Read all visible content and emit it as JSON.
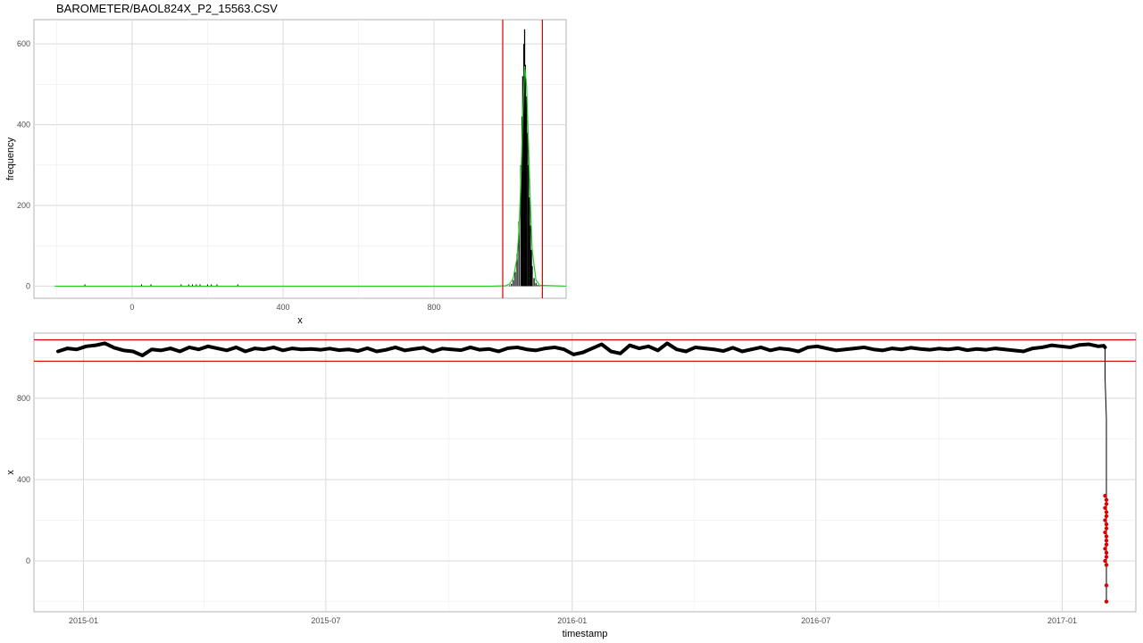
{
  "title": "BAROMETER/BAOL824X_P2_15563.CSV",
  "colors": {
    "grid": "#d9d9d9",
    "threshold": "#d40000",
    "density": "#22cc22",
    "bars": "#000000",
    "outlier": "#e00000",
    "panel_border": "#b3b3b3"
  },
  "chart_data": [
    {
      "type": "histogram",
      "xlabel": "x",
      "ylabel": "frequency",
      "xlim": [
        -260,
        1150
      ],
      "ylim": [
        -30,
        660
      ],
      "xticks": [
        0,
        400,
        800
      ],
      "yticks": [
        0,
        200,
        400,
        600
      ],
      "grid": true,
      "vlines": [
        982,
        1087
      ],
      "density_curve": {
        "x": [
          -205,
          -150,
          -100,
          0,
          200,
          400,
          600,
          800,
          950,
          990,
          1000,
          1010,
          1020,
          1025,
          1030,
          1035,
          1040,
          1045,
          1050,
          1055,
          1060,
          1070,
          1080,
          1150
        ],
        "y": [
          0,
          0,
          0,
          0,
          0,
          0,
          0,
          0,
          0,
          1,
          5,
          20,
          70,
          140,
          260,
          420,
          545,
          500,
          360,
          210,
          90,
          15,
          2,
          0
        ]
      },
      "bars": {
        "x": [
          1000,
          1005,
          1010,
          1015,
          1020,
          1025,
          1030,
          1033,
          1035,
          1038,
          1040,
          1042,
          1045,
          1048,
          1050,
          1053,
          1055,
          1058,
          1060,
          1065,
          1070,
          1075,
          1080
        ],
        "y": [
          2,
          6,
          15,
          35,
          80,
          160,
          300,
          420,
          520,
          600,
          636,
          548,
          470,
          380,
          300,
          220,
          150,
          90,
          50,
          20,
          8,
          3,
          1
        ]
      },
      "rug_x": [
        -125,
        25,
        50,
        130,
        150,
        160,
        170,
        180,
        200,
        210,
        225,
        280
      ]
    },
    {
      "type": "line",
      "xlabel": "timestamp",
      "ylabel": "x",
      "xlim": [
        "2014-11-25",
        "2017-02-25"
      ],
      "ylim": [
        -250,
        1120
      ],
      "xticks": [
        "2015-01",
        "2015-07",
        "2016-01",
        "2016-07",
        "2017-01"
      ],
      "yticks": [
        0,
        400,
        800
      ],
      "grid": true,
      "hlines": [
        982,
        1087
      ],
      "series": [
        {
          "color": "#000000",
          "x": [
            "2014-12-13",
            "2014-12-20",
            "2014-12-27",
            "2015-01-03",
            "2015-01-10",
            "2015-01-17",
            "2015-01-24",
            "2015-01-31",
            "2015-02-07",
            "2015-02-14",
            "2015-02-21",
            "2015-02-28",
            "2015-03-07",
            "2015-03-14",
            "2015-03-21",
            "2015-03-28",
            "2015-04-04",
            "2015-04-11",
            "2015-04-18",
            "2015-04-25",
            "2015-05-02",
            "2015-05-09",
            "2015-05-16",
            "2015-05-23",
            "2015-05-30",
            "2015-06-06",
            "2015-06-13",
            "2015-06-20",
            "2015-06-27",
            "2015-07-04",
            "2015-07-11",
            "2015-07-18",
            "2015-07-25",
            "2015-08-01",
            "2015-08-08",
            "2015-08-15",
            "2015-08-22",
            "2015-08-29",
            "2015-09-05",
            "2015-09-12",
            "2015-09-19",
            "2015-09-26",
            "2015-10-03",
            "2015-10-10",
            "2015-10-17",
            "2015-10-24",
            "2015-10-31",
            "2015-11-07",
            "2015-11-14",
            "2015-11-21",
            "2015-11-28",
            "2015-12-05",
            "2015-12-12",
            "2015-12-19",
            "2015-12-26",
            "2016-01-02",
            "2016-01-09",
            "2016-01-16",
            "2016-01-23",
            "2016-01-30",
            "2016-02-06",
            "2016-02-13",
            "2016-02-20",
            "2016-02-27",
            "2016-03-05",
            "2016-03-12",
            "2016-03-19",
            "2016-03-26",
            "2016-04-02",
            "2016-04-09",
            "2016-04-16",
            "2016-04-23",
            "2016-04-30",
            "2016-05-07",
            "2016-05-14",
            "2016-05-21",
            "2016-05-28",
            "2016-06-04",
            "2016-06-11",
            "2016-06-18",
            "2016-06-25",
            "2016-07-02",
            "2016-07-09",
            "2016-07-16",
            "2016-07-23",
            "2016-07-30",
            "2016-08-06",
            "2016-08-13",
            "2016-08-20",
            "2016-08-27",
            "2016-09-03",
            "2016-09-10",
            "2016-09-17",
            "2016-09-24",
            "2016-10-01",
            "2016-10-08",
            "2016-10-15",
            "2016-10-22",
            "2016-10-29",
            "2016-11-05",
            "2016-11-12",
            "2016-11-19",
            "2016-11-26",
            "2016-12-03",
            "2016-12-10",
            "2016-12-17",
            "2016-12-24",
            "2016-12-31",
            "2017-01-07",
            "2017-01-14",
            "2017-01-21",
            "2017-01-28",
            "2017-02-01",
            "2017-02-02"
          ],
          "y": [
            1030,
            1045,
            1040,
            1055,
            1060,
            1070,
            1048,
            1035,
            1030,
            1010,
            1040,
            1035,
            1045,
            1030,
            1050,
            1040,
            1055,
            1045,
            1035,
            1050,
            1030,
            1045,
            1040,
            1050,
            1035,
            1045,
            1040,
            1042,
            1038,
            1044,
            1036,
            1040,
            1032,
            1046,
            1030,
            1038,
            1050,
            1035,
            1042,
            1048,
            1030,
            1044,
            1040,
            1036,
            1050,
            1038,
            1042,
            1030,
            1046,
            1050,
            1040,
            1035,
            1045,
            1050,
            1040,
            1015,
            1025,
            1045,
            1065,
            1030,
            1020,
            1060,
            1045,
            1055,
            1035,
            1070,
            1040,
            1030,
            1050,
            1045,
            1040,
            1032,
            1048,
            1030,
            1040,
            1050,
            1035,
            1045,
            1040,
            1030,
            1050,
            1055,
            1045,
            1035,
            1040,
            1045,
            1050,
            1040,
            1035,
            1045,
            1040,
            1048,
            1042,
            1038,
            1044,
            1040,
            1046,
            1036,
            1042,
            1038,
            1045,
            1040,
            1035,
            1030,
            1045,
            1050,
            1060,
            1055,
            1050,
            1062,
            1065,
            1055,
            1058,
            1050
          ]
        },
        {
          "color": "#000000",
          "x": [
            "2017-02-02",
            "2017-02-02",
            "2017-02-03",
            "2017-02-03",
            "2017-02-03",
            "2017-02-03",
            "2017-02-03",
            "2017-02-03",
            "2017-02-03",
            "2017-02-03",
            "2017-02-03"
          ],
          "y": [
            1050,
            900,
            700,
            500,
            400,
            320,
            250,
            150,
            50,
            -100,
            -200
          ]
        }
      ],
      "outliers": {
        "color": "#e00000",
        "x": [
          "2017-02-02",
          "2017-02-03",
          "2017-02-03",
          "2017-02-02",
          "2017-02-03",
          "2017-02-03",
          "2017-02-02",
          "2017-02-03",
          "2017-02-03",
          "2017-02-02",
          "2017-02-03",
          "2017-02-03",
          "2017-02-03",
          "2017-02-02",
          "2017-02-03",
          "2017-02-03",
          "2017-02-02",
          "2017-02-03",
          "2017-02-03",
          "2017-02-03"
        ],
        "y": [
          320,
          300,
          280,
          260,
          240,
          220,
          200,
          180,
          160,
          140,
          120,
          100,
          80,
          60,
          40,
          20,
          0,
          -20,
          -120,
          -200
        ]
      }
    }
  ]
}
